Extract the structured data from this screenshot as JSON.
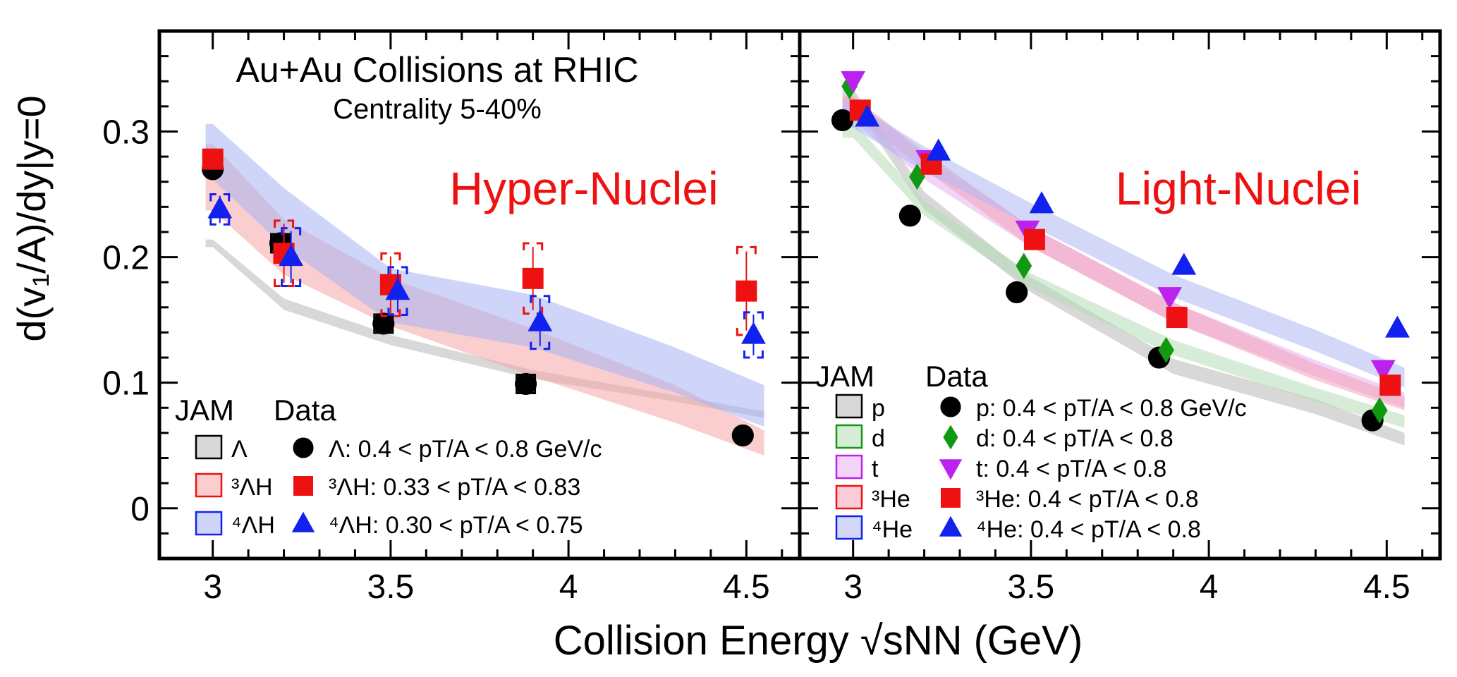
{
  "figure": {
    "ylabel": "d(v₁/A)/dy|y=0",
    "xlabel": "Collision Energy √sNN (GeV)"
  },
  "chart_data": [
    {
      "type": "scatter",
      "panel": "left",
      "title": "Au+Au Collisions at RHIC",
      "subtitle": "Centrality 5-40%",
      "label": "Hyper-Nuclei",
      "xlim": [
        2.85,
        4.65
      ],
      "ylim": [
        -0.04,
        0.38
      ],
      "xticks": [
        "3",
        "3.5",
        "4",
        "4.5"
      ],
      "yticks": [
        "0",
        "0.1",
        "0.2",
        "0.3"
      ],
      "legend": {
        "jam_header": "JAM",
        "data_header": "Data",
        "placement": "bottom-left"
      },
      "series": [
        {
          "name": "Λ: 0.4 < pT/A < 0.8 GeV/c",
          "jam_label": "Λ",
          "marker": "circle",
          "color": "#000000",
          "x": [
            3.0,
            3.19,
            3.48,
            3.88,
            4.49
          ],
          "y": [
            0.27,
            0.211,
            0.147,
            0.099,
            0.058
          ],
          "syst": [
            0.0,
            0.008,
            0.004,
            0.006,
            0.0
          ],
          "band": {
            "color": "#b8b8b8",
            "x": [
              2.98,
              3.0,
              3.2,
              3.5,
              3.9,
              4.3,
              4.55
            ],
            "lo": [
              0.208,
              0.208,
              0.158,
              0.13,
              0.103,
              0.085,
              0.072
            ],
            "hi": [
              0.214,
              0.214,
              0.167,
              0.138,
              0.11,
              0.09,
              0.077
            ]
          }
        },
        {
          "name": "³ΛH: 0.33 < pT/A < 0.83",
          "jam_label": "³ΛH",
          "marker": "square",
          "color": "#ee1111",
          "x": [
            3.0,
            3.2,
            3.5,
            3.9,
            4.5
          ],
          "y": [
            0.278,
            0.203,
            0.178,
            0.183,
            0.173
          ],
          "syst": [
            0.0,
            0.026,
            0.025,
            0.028,
            0.035
          ],
          "band": {
            "color": "#f6a5a5",
            "x": [
              2.98,
              3.0,
              3.2,
              3.5,
              3.9,
              4.3,
              4.55
            ],
            "lo": [
              0.237,
              0.237,
              0.186,
              0.145,
              0.105,
              0.068,
              0.042
            ],
            "hi": [
              0.29,
              0.29,
              0.23,
              0.183,
              0.143,
              0.098,
              0.062
            ]
          }
        },
        {
          "name": "⁴ΛH: 0.30 < pT/A < 0.75",
          "jam_label": "⁴ΛH",
          "marker": "triangle",
          "color": "#1122ee",
          "x": [
            3.02,
            3.22,
            3.52,
            3.92,
            4.52
          ],
          "y": [
            0.238,
            0.2,
            0.173,
            0.148,
            0.138
          ],
          "syst": [
            0.012,
            0.023,
            0.019,
            0.021,
            0.018
          ],
          "band": {
            "color": "#a8b2f3",
            "x": [
              2.98,
              3.0,
              3.2,
              3.5,
              3.9,
              4.3,
              4.55
            ],
            "lo": [
              0.262,
              0.262,
              0.208,
              0.148,
              0.128,
              0.092,
              0.065
            ],
            "hi": [
              0.306,
              0.306,
              0.255,
              0.191,
              0.17,
              0.128,
              0.098
            ]
          }
        }
      ]
    },
    {
      "type": "scatter",
      "panel": "right",
      "label": "Light-Nuclei",
      "xlim": [
        2.85,
        4.65
      ],
      "ylim": [
        -0.04,
        0.38
      ],
      "xticks": [
        "3",
        "3.5",
        "4",
        "4.5"
      ],
      "legend": {
        "jam_header": "JAM",
        "data_header": "Data",
        "placement": "bottom-left"
      },
      "series": [
        {
          "name": "p: 0.4 < pT/A < 0.8 GeV/c",
          "jam_label": "p",
          "marker": "circle",
          "color": "#000000",
          "x": [
            2.97,
            3.16,
            3.46,
            3.86,
            4.46
          ],
          "y": [
            0.309,
            0.233,
            0.172,
            0.12,
            0.07
          ],
          "band": {
            "color": "#b8b8b8",
            "x": [
              2.97,
              3.0,
              3.2,
              3.5,
              3.9,
              4.3,
              4.55
            ],
            "lo": [
              0.322,
              0.322,
              0.238,
              0.172,
              0.107,
              0.075,
              0.05
            ],
            "hi": [
              0.334,
              0.334,
              0.252,
              0.184,
              0.119,
              0.087,
              0.06
            ]
          }
        },
        {
          "name": "d: 0.4 < pT/A < 0.8",
          "jam_label": "d",
          "marker": "diamond",
          "color": "#119911",
          "x": [
            2.99,
            3.18,
            3.48,
            3.88,
            4.48
          ],
          "y": [
            0.336,
            0.264,
            0.193,
            0.126,
            0.078
          ],
          "band": {
            "color": "#b7ddb4",
            "x": [
              2.97,
              3.0,
              3.2,
              3.5,
              3.9,
              4.3,
              4.55
            ],
            "lo": [
              0.295,
              0.295,
              0.233,
              0.175,
              0.122,
              0.085,
              0.064
            ],
            "hi": [
              0.308,
              0.308,
              0.245,
              0.187,
              0.134,
              0.096,
              0.074
            ]
          }
        },
        {
          "name": "t: 0.4 < pT/A < 0.8",
          "jam_label": "t",
          "marker": "triangle-down",
          "color": "#bb22ee",
          "x": [
            3.0,
            3.21,
            3.49,
            3.89,
            4.49
          ],
          "y": [
            0.341,
            0.278,
            0.222,
            0.169,
            0.111
          ],
          "band": {
            "color": "#e6b0f0",
            "x": [
              2.97,
              3.0,
              3.2,
              3.5,
              3.9,
              4.3,
              4.55
            ],
            "lo": [
              0.308,
              0.308,
              0.262,
              0.208,
              0.148,
              0.105,
              0.08
            ],
            "hi": [
              0.326,
              0.326,
              0.282,
              0.224,
              0.164,
              0.118,
              0.092
            ]
          }
        },
        {
          "name": "³He: 0.4 < pT/A < 0.8",
          "jam_label": "³He",
          "marker": "square",
          "color": "#ee1111",
          "x": [
            3.02,
            3.22,
            3.51,
            3.91,
            4.51
          ],
          "y": [
            0.317,
            0.274,
            0.214,
            0.152,
            0.098
          ],
          "band": {
            "color": "#f4a3b8",
            "x": [
              2.97,
              3.0,
              3.2,
              3.5,
              3.9,
              4.3,
              4.55
            ],
            "lo": [
              0.314,
              0.314,
              0.27,
              0.208,
              0.148,
              0.102,
              0.078
            ],
            "hi": [
              0.328,
              0.328,
              0.284,
              0.224,
              0.164,
              0.115,
              0.089
            ]
          }
        },
        {
          "name": "⁴He: 0.4 < pT/A < 0.8",
          "jam_label": "⁴He",
          "marker": "triangle",
          "color": "#1122ee",
          "x": [
            3.04,
            3.24,
            3.53,
            3.93,
            4.53
          ],
          "y": [
            0.311,
            0.284,
            0.242,
            0.193,
            0.143
          ],
          "band": {
            "color": "#b0b8f3",
            "x": [
              2.97,
              3.0,
              3.2,
              3.5,
              3.9,
              4.3,
              4.55
            ],
            "lo": [
              0.303,
              0.303,
              0.268,
              0.225,
              0.168,
              0.125,
              0.096
            ],
            "hi": [
              0.323,
              0.323,
              0.288,
              0.243,
              0.186,
              0.142,
              0.112
            ]
          }
        }
      ]
    }
  ]
}
